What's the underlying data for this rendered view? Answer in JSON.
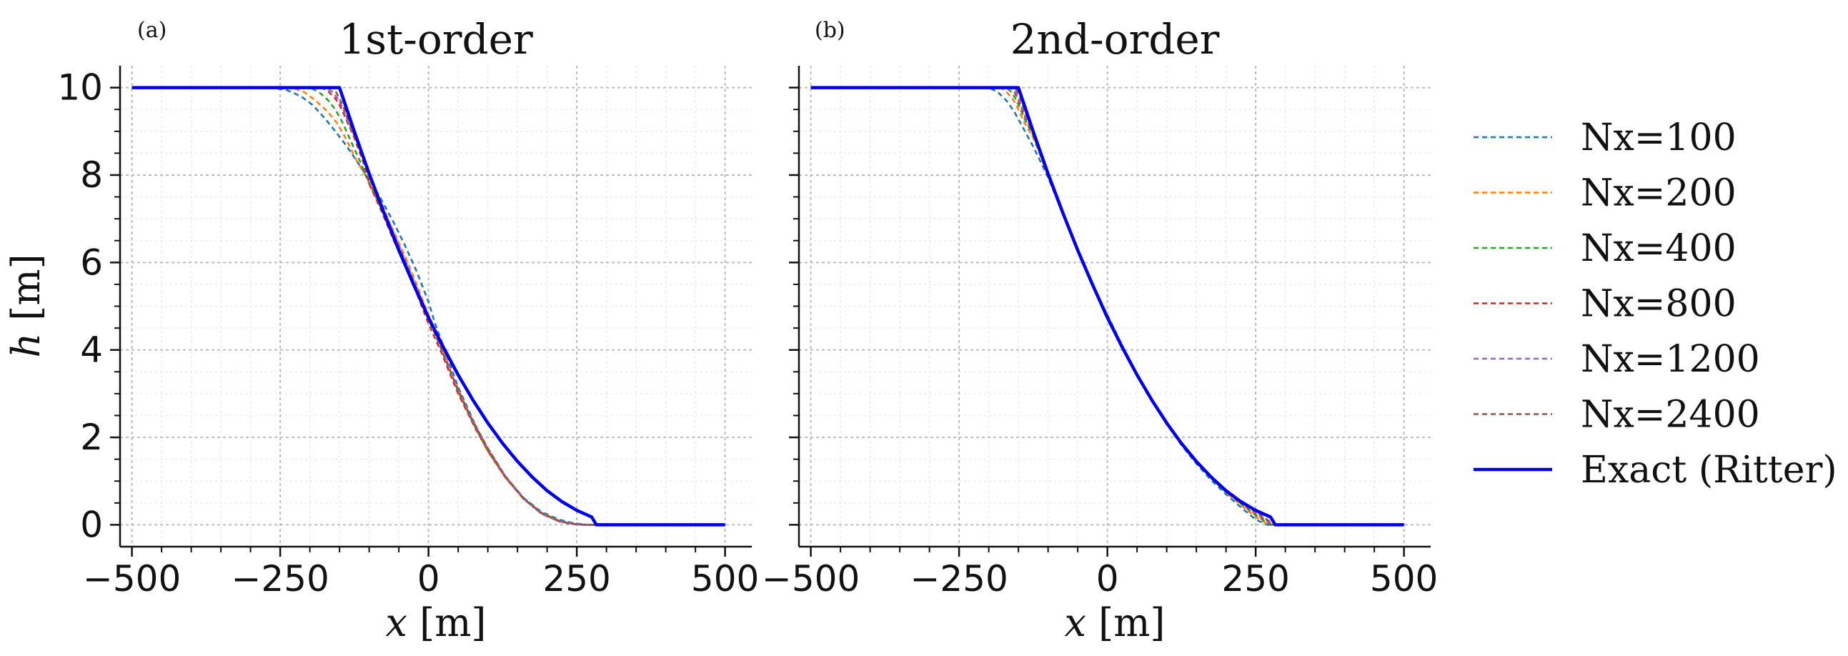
{
  "chart_data": [
    {
      "type": "line",
      "panel_label": "(a)",
      "title": "1st-order",
      "xlabel_var": "x",
      "xlabel_unit": " [m]",
      "ylabel_var": "h",
      "ylabel_unit": " [m]",
      "xlim": [
        -520,
        545
      ],
      "ylim": [
        -0.5,
        10.5
      ],
      "xticks": [
        -500,
        -250,
        0,
        250,
        500
      ],
      "xtick_labels": [
        "−500",
        "−250",
        "0",
        "250",
        "500"
      ],
      "yticks": [
        0,
        2,
        4,
        6,
        8,
        10
      ],
      "ytick_labels": [
        "0",
        "2",
        "4",
        "6",
        "8",
        "10"
      ],
      "grid": true,
      "series": [
        {
          "name": "Nx=100",
          "color": "#1f77b4",
          "dash": true,
          "x": [
            -500,
            -270,
            -240,
            -215,
            -195,
            -175,
            -160,
            -140,
            -120,
            -100,
            -80,
            -60,
            -40,
            -20,
            0,
            10,
            30,
            50,
            80,
            100,
            130,
            160,
            190,
            220,
            240,
            255,
            270,
            500
          ],
          "y": [
            10,
            10,
            9.95,
            9.8,
            9.6,
            9.3,
            9.05,
            8.7,
            8.3,
            7.9,
            7.45,
            6.95,
            6.4,
            5.8,
            5.1,
            4.65,
            3.9,
            3.15,
            2.25,
            1.7,
            1.1,
            0.62,
            0.3,
            0.12,
            0.05,
            0.02,
            0.0,
            0
          ]
        },
        {
          "name": "Nx=200",
          "color": "#ff7f0e",
          "dash": true,
          "x": [
            -500,
            -230,
            -210,
            -190,
            -170,
            -155,
            -140,
            -120,
            -100,
            -80,
            -60,
            -40,
            -20,
            0,
            20,
            50,
            80,
            100,
            130,
            160,
            190,
            220,
            240,
            260,
            500
          ],
          "y": [
            10,
            10,
            9.9,
            9.7,
            9.45,
            9.2,
            8.85,
            8.3,
            7.85,
            7.3,
            6.75,
            6.15,
            5.5,
            4.8,
            4.15,
            3.05,
            2.2,
            1.68,
            1.07,
            0.6,
            0.28,
            0.1,
            0.03,
            0.0,
            0
          ]
        },
        {
          "name": "Nx=400",
          "color": "#2ca02c",
          "dash": true,
          "x": [
            -500,
            -200,
            -185,
            -170,
            -157,
            -145,
            -130,
            -115,
            -100,
            -80,
            -60,
            -40,
            -20,
            0,
            20,
            50,
            80,
            100,
            130,
            160,
            190,
            220,
            240,
            260,
            500
          ],
          "y": [
            10,
            10,
            9.9,
            9.72,
            9.5,
            9.2,
            8.75,
            8.3,
            7.8,
            7.25,
            6.65,
            6.05,
            5.4,
            4.7,
            4.1,
            3.05,
            2.2,
            1.7,
            1.1,
            0.62,
            0.28,
            0.08,
            0.02,
            0.0,
            0
          ]
        },
        {
          "name": "Nx=800",
          "color": "#d62728",
          "dash": true,
          "x": [
            -500,
            -180,
            -168,
            -157,
            -148,
            -138,
            -125,
            -110,
            -100,
            -80,
            -60,
            -40,
            -20,
            0,
            20,
            50,
            80,
            100,
            130,
            160,
            190,
            220,
            250,
            265,
            500
          ],
          "y": [
            10,
            10,
            9.9,
            9.75,
            9.55,
            9.25,
            8.85,
            8.3,
            7.8,
            7.2,
            6.55,
            5.95,
            5.3,
            4.6,
            4.0,
            3.0,
            2.18,
            1.7,
            1.08,
            0.6,
            0.26,
            0.08,
            0.01,
            0.0,
            0
          ]
        },
        {
          "name": "Nx=1200",
          "color": "#9467bd",
          "dash": true,
          "x": [
            -500,
            -172,
            -162,
            -153,
            -145,
            -135,
            -120,
            -105,
            -90,
            -70,
            -50,
            -30,
            -10,
            10,
            40,
            70,
            100,
            130,
            160,
            190,
            220,
            250,
            270,
            500
          ],
          "y": [
            10,
            10,
            9.9,
            9.75,
            9.55,
            9.2,
            8.75,
            8.2,
            7.7,
            7.05,
            6.4,
            5.75,
            5.1,
            4.45,
            3.4,
            2.5,
            1.75,
            1.1,
            0.6,
            0.26,
            0.08,
            0.01,
            0.0,
            0
          ]
        },
        {
          "name": "Nx=2400",
          "color": "#8c564b",
          "dash": true,
          "x": [
            -500,
            -162,
            -156,
            -150,
            -143,
            -135,
            -120,
            -105,
            -90,
            -70,
            -50,
            -30,
            -10,
            10,
            40,
            70,
            100,
            130,
            160,
            190,
            220,
            250,
            275,
            500
          ],
          "y": [
            10,
            10,
            9.9,
            9.75,
            9.55,
            9.25,
            8.75,
            8.2,
            7.65,
            7.0,
            6.35,
            5.7,
            5.05,
            4.4,
            3.4,
            2.5,
            1.75,
            1.1,
            0.6,
            0.27,
            0.08,
            0.01,
            0.0,
            0
          ]
        },
        {
          "name": "Exact (Ritter)",
          "color": "#0000ee",
          "dash": false,
          "x": [
            -500,
            -150,
            -125,
            -100,
            -75,
            -50,
            -25,
            0,
            25,
            50,
            75,
            100,
            125,
            150,
            175,
            200,
            225,
            250,
            275,
            283,
            500
          ],
          "y": [
            10,
            10,
            8.99,
            8.03,
            7.13,
            6.28,
            5.49,
            4.74,
            4.06,
            3.43,
            2.85,
            2.33,
            1.86,
            1.45,
            1.09,
            0.78,
            0.53,
            0.33,
            0.18,
            0.0,
            0
          ]
        }
      ]
    },
    {
      "type": "line",
      "panel_label": "(b)",
      "title": "2nd-order",
      "xlabel_var": "x",
      "xlabel_unit": " [m]",
      "xlim": [
        -520,
        545
      ],
      "ylim": [
        -0.5,
        10.5
      ],
      "xticks": [
        -500,
        -250,
        0,
        250,
        500
      ],
      "xtick_labels": [
        "−500",
        "−250",
        "0",
        "250",
        "500"
      ],
      "yticks": [
        0,
        2,
        4,
        6,
        8,
        10
      ],
      "grid": true,
      "series": [
        {
          "name": "Nx=100",
          "color": "#1f77b4",
          "dash": true,
          "x": [
            -500,
            -200,
            -185,
            -170,
            -157,
            -145,
            -125,
            -100,
            -75,
            -50,
            -25,
            0,
            25,
            50,
            75,
            100,
            125,
            150,
            175,
            200,
            225,
            250,
            270,
            500
          ],
          "y": [
            10,
            10,
            9.9,
            9.7,
            9.45,
            9.15,
            8.65,
            7.95,
            7.1,
            6.3,
            5.5,
            4.8,
            4.1,
            3.45,
            2.85,
            2.3,
            1.82,
            1.4,
            1.02,
            0.7,
            0.4,
            0.12,
            0.0,
            0
          ]
        },
        {
          "name": "Nx=200",
          "color": "#ff7f0e",
          "dash": true,
          "x": [
            -500,
            -180,
            -170,
            -160,
            -152,
            -140,
            -125,
            -100,
            -75,
            -50,
            -25,
            0,
            25,
            50,
            75,
            100,
            125,
            150,
            175,
            200,
            225,
            250,
            272,
            500
          ],
          "y": [
            10,
            10,
            9.9,
            9.75,
            9.55,
            9.2,
            8.85,
            8.0,
            7.12,
            6.29,
            5.5,
            4.76,
            4.07,
            3.44,
            2.85,
            2.33,
            1.86,
            1.44,
            1.07,
            0.74,
            0.45,
            0.18,
            0.0,
            0
          ]
        },
        {
          "name": "Nx=400",
          "color": "#2ca02c",
          "dash": true,
          "x": [
            -500,
            -170,
            -162,
            -155,
            -148,
            -140,
            -125,
            -100,
            -75,
            -50,
            -25,
            0,
            25,
            50,
            75,
            100,
            125,
            150,
            175,
            200,
            225,
            250,
            275,
            500
          ],
          "y": [
            10,
            10,
            9.9,
            9.75,
            9.55,
            9.3,
            8.9,
            8.02,
            7.13,
            6.28,
            5.49,
            4.75,
            4.06,
            3.43,
            2.85,
            2.33,
            1.86,
            1.45,
            1.08,
            0.76,
            0.48,
            0.22,
            0.0,
            0
          ]
        },
        {
          "name": "Nx=800",
          "color": "#d62728",
          "dash": true,
          "x": [
            -500,
            -163,
            -157,
            -151,
            -145,
            -138,
            -125,
            -100,
            -75,
            -50,
            -25,
            0,
            25,
            50,
            75,
            100,
            125,
            150,
            175,
            200,
            225,
            250,
            278,
            500
          ],
          "y": [
            10,
            10,
            9.9,
            9.75,
            9.55,
            9.3,
            8.95,
            8.03,
            7.13,
            6.28,
            5.49,
            4.74,
            4.06,
            3.43,
            2.85,
            2.33,
            1.86,
            1.45,
            1.09,
            0.77,
            0.5,
            0.26,
            0.0,
            0
          ]
        },
        {
          "name": "Nx=1200",
          "color": "#9467bd",
          "dash": true,
          "x": [
            -500,
            -160,
            -155,
            -150,
            -145,
            -138,
            -125,
            -100,
            -75,
            -50,
            -25,
            0,
            25,
            50,
            75,
            100,
            125,
            150,
            175,
            200,
            225,
            250,
            280,
            500
          ],
          "y": [
            10,
            10,
            9.9,
            9.78,
            9.6,
            9.35,
            8.97,
            8.03,
            7.13,
            6.28,
            5.49,
            4.74,
            4.06,
            3.43,
            2.85,
            2.33,
            1.86,
            1.45,
            1.09,
            0.78,
            0.52,
            0.28,
            0.0,
            0
          ]
        },
        {
          "name": "Nx=2400",
          "color": "#8c564b",
          "dash": true,
          "x": [
            -500,
            -156,
            -152,
            -148,
            -143,
            -137,
            -125,
            -100,
            -75,
            -50,
            -25,
            0,
            25,
            50,
            75,
            100,
            125,
            150,
            175,
            200,
            225,
            250,
            281,
            500
          ],
          "y": [
            10,
            10,
            9.92,
            9.8,
            9.62,
            9.4,
            8.98,
            8.03,
            7.13,
            6.28,
            5.49,
            4.74,
            4.06,
            3.43,
            2.85,
            2.33,
            1.86,
            1.45,
            1.09,
            0.78,
            0.53,
            0.31,
            0.0,
            0
          ]
        },
        {
          "name": "Exact (Ritter)",
          "color": "#0000ee",
          "dash": false,
          "x": [
            -500,
            -150,
            -125,
            -100,
            -75,
            -50,
            -25,
            0,
            25,
            50,
            75,
            100,
            125,
            150,
            175,
            200,
            225,
            250,
            275,
            283,
            500
          ],
          "y": [
            10,
            10,
            8.99,
            8.03,
            7.13,
            6.28,
            5.49,
            4.74,
            4.06,
            3.43,
            2.85,
            2.33,
            1.86,
            1.45,
            1.09,
            0.78,
            0.53,
            0.33,
            0.18,
            0.0,
            0
          ]
        }
      ]
    }
  ],
  "legend": {
    "placement": "right",
    "entries": [
      "Nx=100",
      "Nx=200",
      "Nx=400",
      "Nx=800",
      "Nx=1200",
      "Nx=2400",
      "Exact (Ritter)"
    ],
    "colors": [
      "#1f77b4",
      "#ff7f0e",
      "#2ca02c",
      "#d62728",
      "#9467bd",
      "#8c564b",
      "#0000ee"
    ],
    "dashed": [
      true,
      true,
      true,
      true,
      true,
      true,
      false
    ]
  }
}
